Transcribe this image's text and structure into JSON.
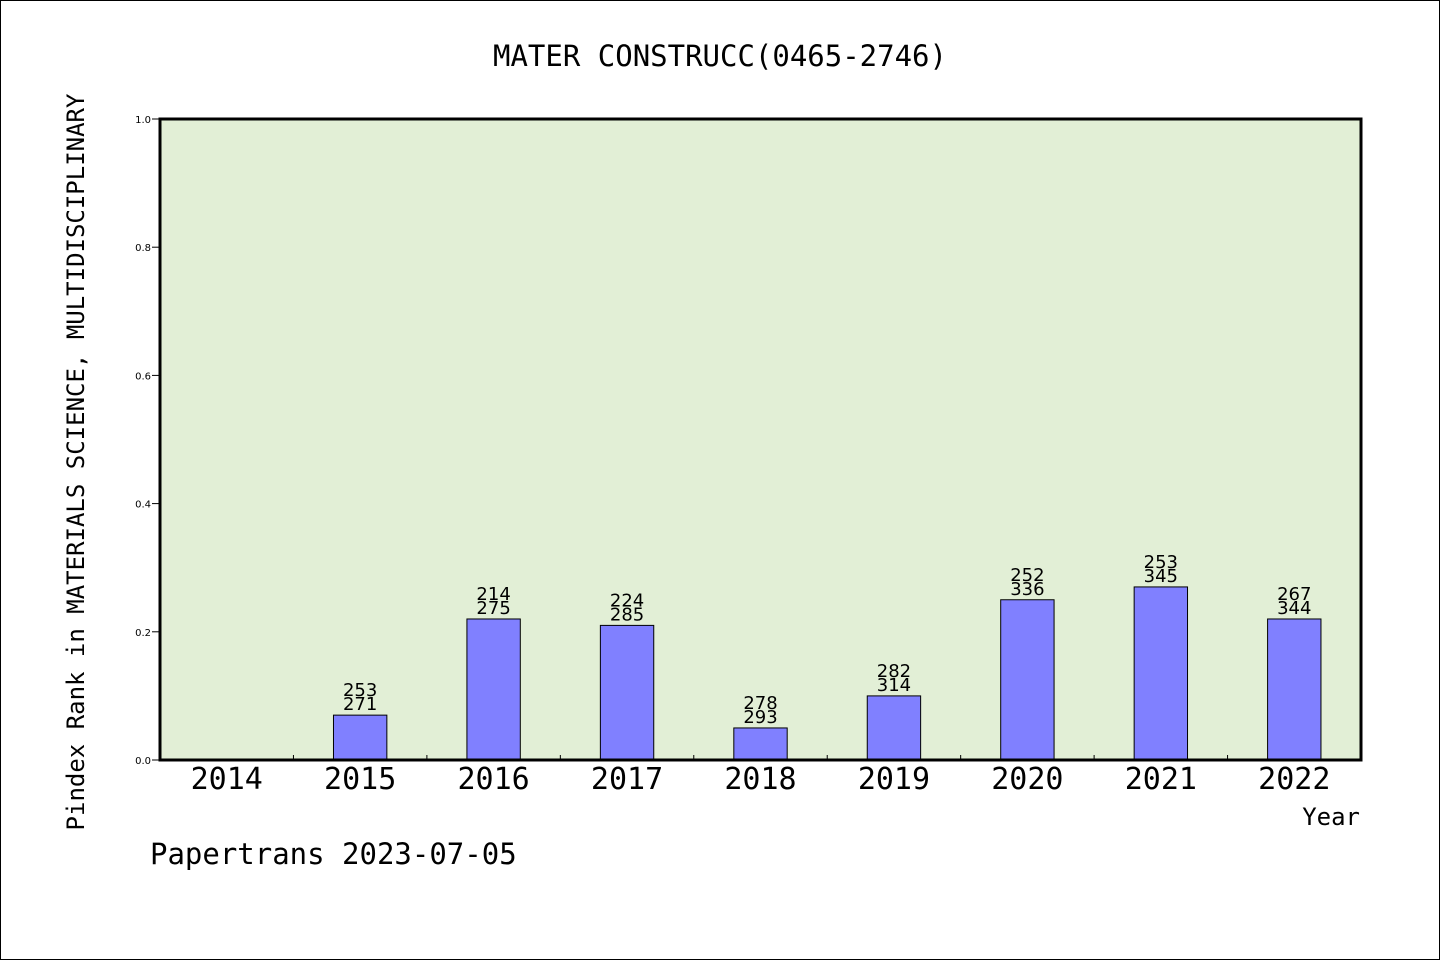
{
  "chart_data": {
    "type": "bar",
    "title": "MATER CONSTRUCC(0465-2746)",
    "xlabel": "Year",
    "ylabel": "Pindex Rank in MATERIALS SCIENCE, MULTIDISCIPLINARY",
    "ylim": [
      0,
      1.0
    ],
    "yticks": [
      "0.0",
      "0.2",
      "0.4",
      "0.6",
      "0.8",
      "1.0"
    ],
    "categories": [
      "2014",
      "2015",
      "2016",
      "2017",
      "2018",
      "2019",
      "2020",
      "2021",
      "2022"
    ],
    "values": [
      null,
      0.07,
      0.22,
      0.21,
      0.05,
      0.1,
      0.25,
      0.27,
      0.22
    ],
    "label_top": [
      "",
      "253",
      "214",
      "224",
      "278",
      "282",
      "252",
      "253",
      "267"
    ],
    "label_bottom": [
      "",
      "271",
      "275",
      "285",
      "293",
      "314",
      "336",
      "345",
      "344"
    ],
    "grid": false,
    "colors": {
      "plot_bg": "#e2efd6",
      "bar": "#8080ff"
    }
  },
  "footer": {
    "credit": "Papertrans 2023-07-05"
  }
}
